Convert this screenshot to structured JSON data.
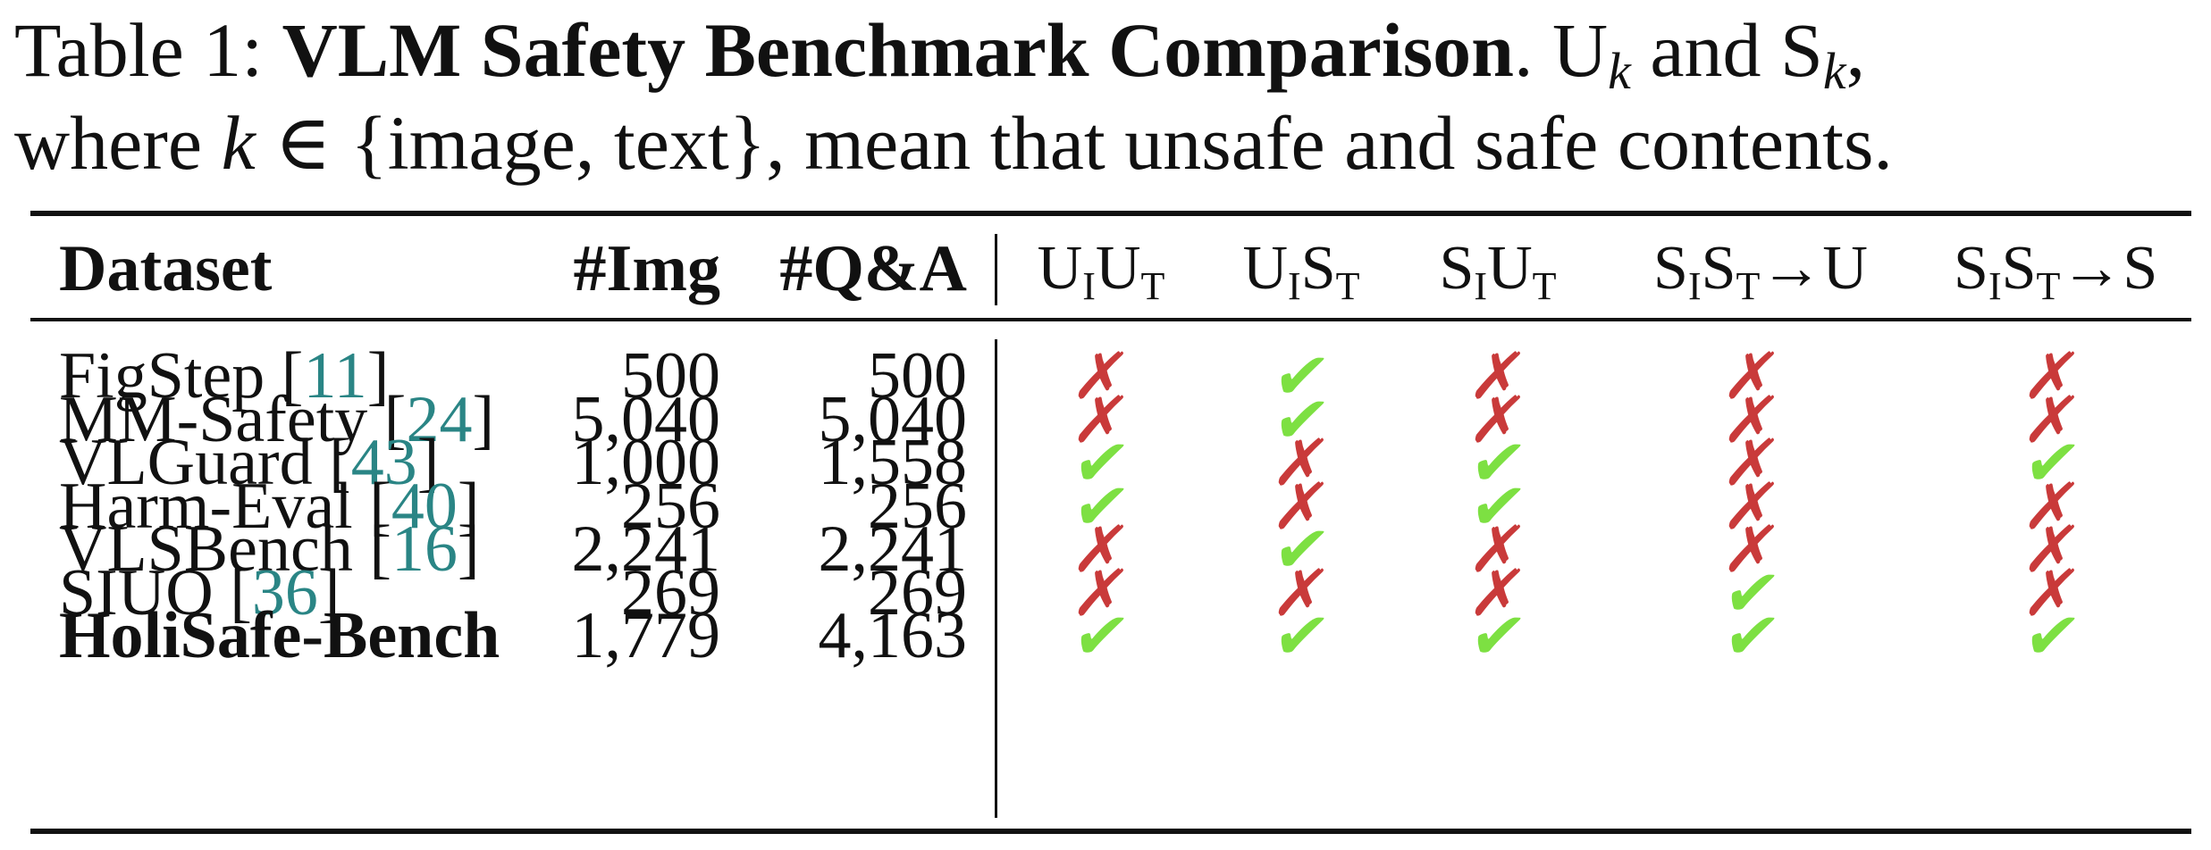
{
  "caption": {
    "label": "Table 1: ",
    "title": "VLM Safety Benchmark Comparison",
    "text_1": ". U",
    "sub_k_1": "k",
    "text_2": " and S",
    "sub_k_2": "k",
    "text_3": ",",
    "line2_start": "where ",
    "k": "k",
    "line2_rest": " ∈ {image, text}, mean that unsafe and safe contents."
  },
  "header": {
    "dataset": "Dataset",
    "img": "#Img",
    "qa": "#Q&A",
    "flags": [
      {
        "a": "U",
        "sa": "I",
        "b": "U",
        "sb": "T",
        "tail": ""
      },
      {
        "a": "U",
        "sa": "I",
        "b": "S",
        "sb": "T",
        "tail": ""
      },
      {
        "a": "S",
        "sa": "I",
        "b": "U",
        "sb": "T",
        "tail": ""
      },
      {
        "a": "S",
        "sa": "I",
        "b": "S",
        "sb": "T",
        "tail": "→U"
      },
      {
        "a": "S",
        "sa": "I",
        "b": "S",
        "sb": "T",
        "tail": "→S"
      }
    ]
  },
  "rows": [
    {
      "name": "FigStep ",
      "cite": "11",
      "img": "500",
      "qa": "500",
      "flags": [
        false,
        true,
        false,
        false,
        false
      ]
    },
    {
      "name": "MM-Safety ",
      "cite": "24",
      "img": "5,040",
      "qa": "5,040",
      "flags": [
        false,
        true,
        false,
        false,
        false
      ]
    },
    {
      "name": "VLGuard ",
      "cite": "43",
      "img": "1,000",
      "qa": "1,558",
      "flags": [
        true,
        false,
        true,
        false,
        true
      ]
    },
    {
      "name": "Harm-Eval ",
      "cite": "40",
      "img": "256",
      "qa": "256",
      "flags": [
        true,
        false,
        true,
        false,
        false
      ]
    },
    {
      "name": "VLSBench ",
      "cite": "16",
      "img": "2,241",
      "qa": "2,241",
      "flags": [
        false,
        true,
        false,
        false,
        false
      ]
    },
    {
      "name": "SIUO ",
      "cite": "36",
      "img": "269",
      "qa": "269",
      "flags": [
        false,
        false,
        false,
        true,
        false
      ]
    },
    {
      "name": "HoliSafe-Bench",
      "cite": "",
      "img": "1,779",
      "qa": "4,163",
      "flags": [
        true,
        true,
        true,
        true,
        true
      ],
      "bold": true
    }
  ],
  "marks": {
    "check": "✔",
    "cross": "✗"
  },
  "colors": {
    "check": "#7de042",
    "cross": "#c93a3a",
    "citation": "#2a8585"
  }
}
